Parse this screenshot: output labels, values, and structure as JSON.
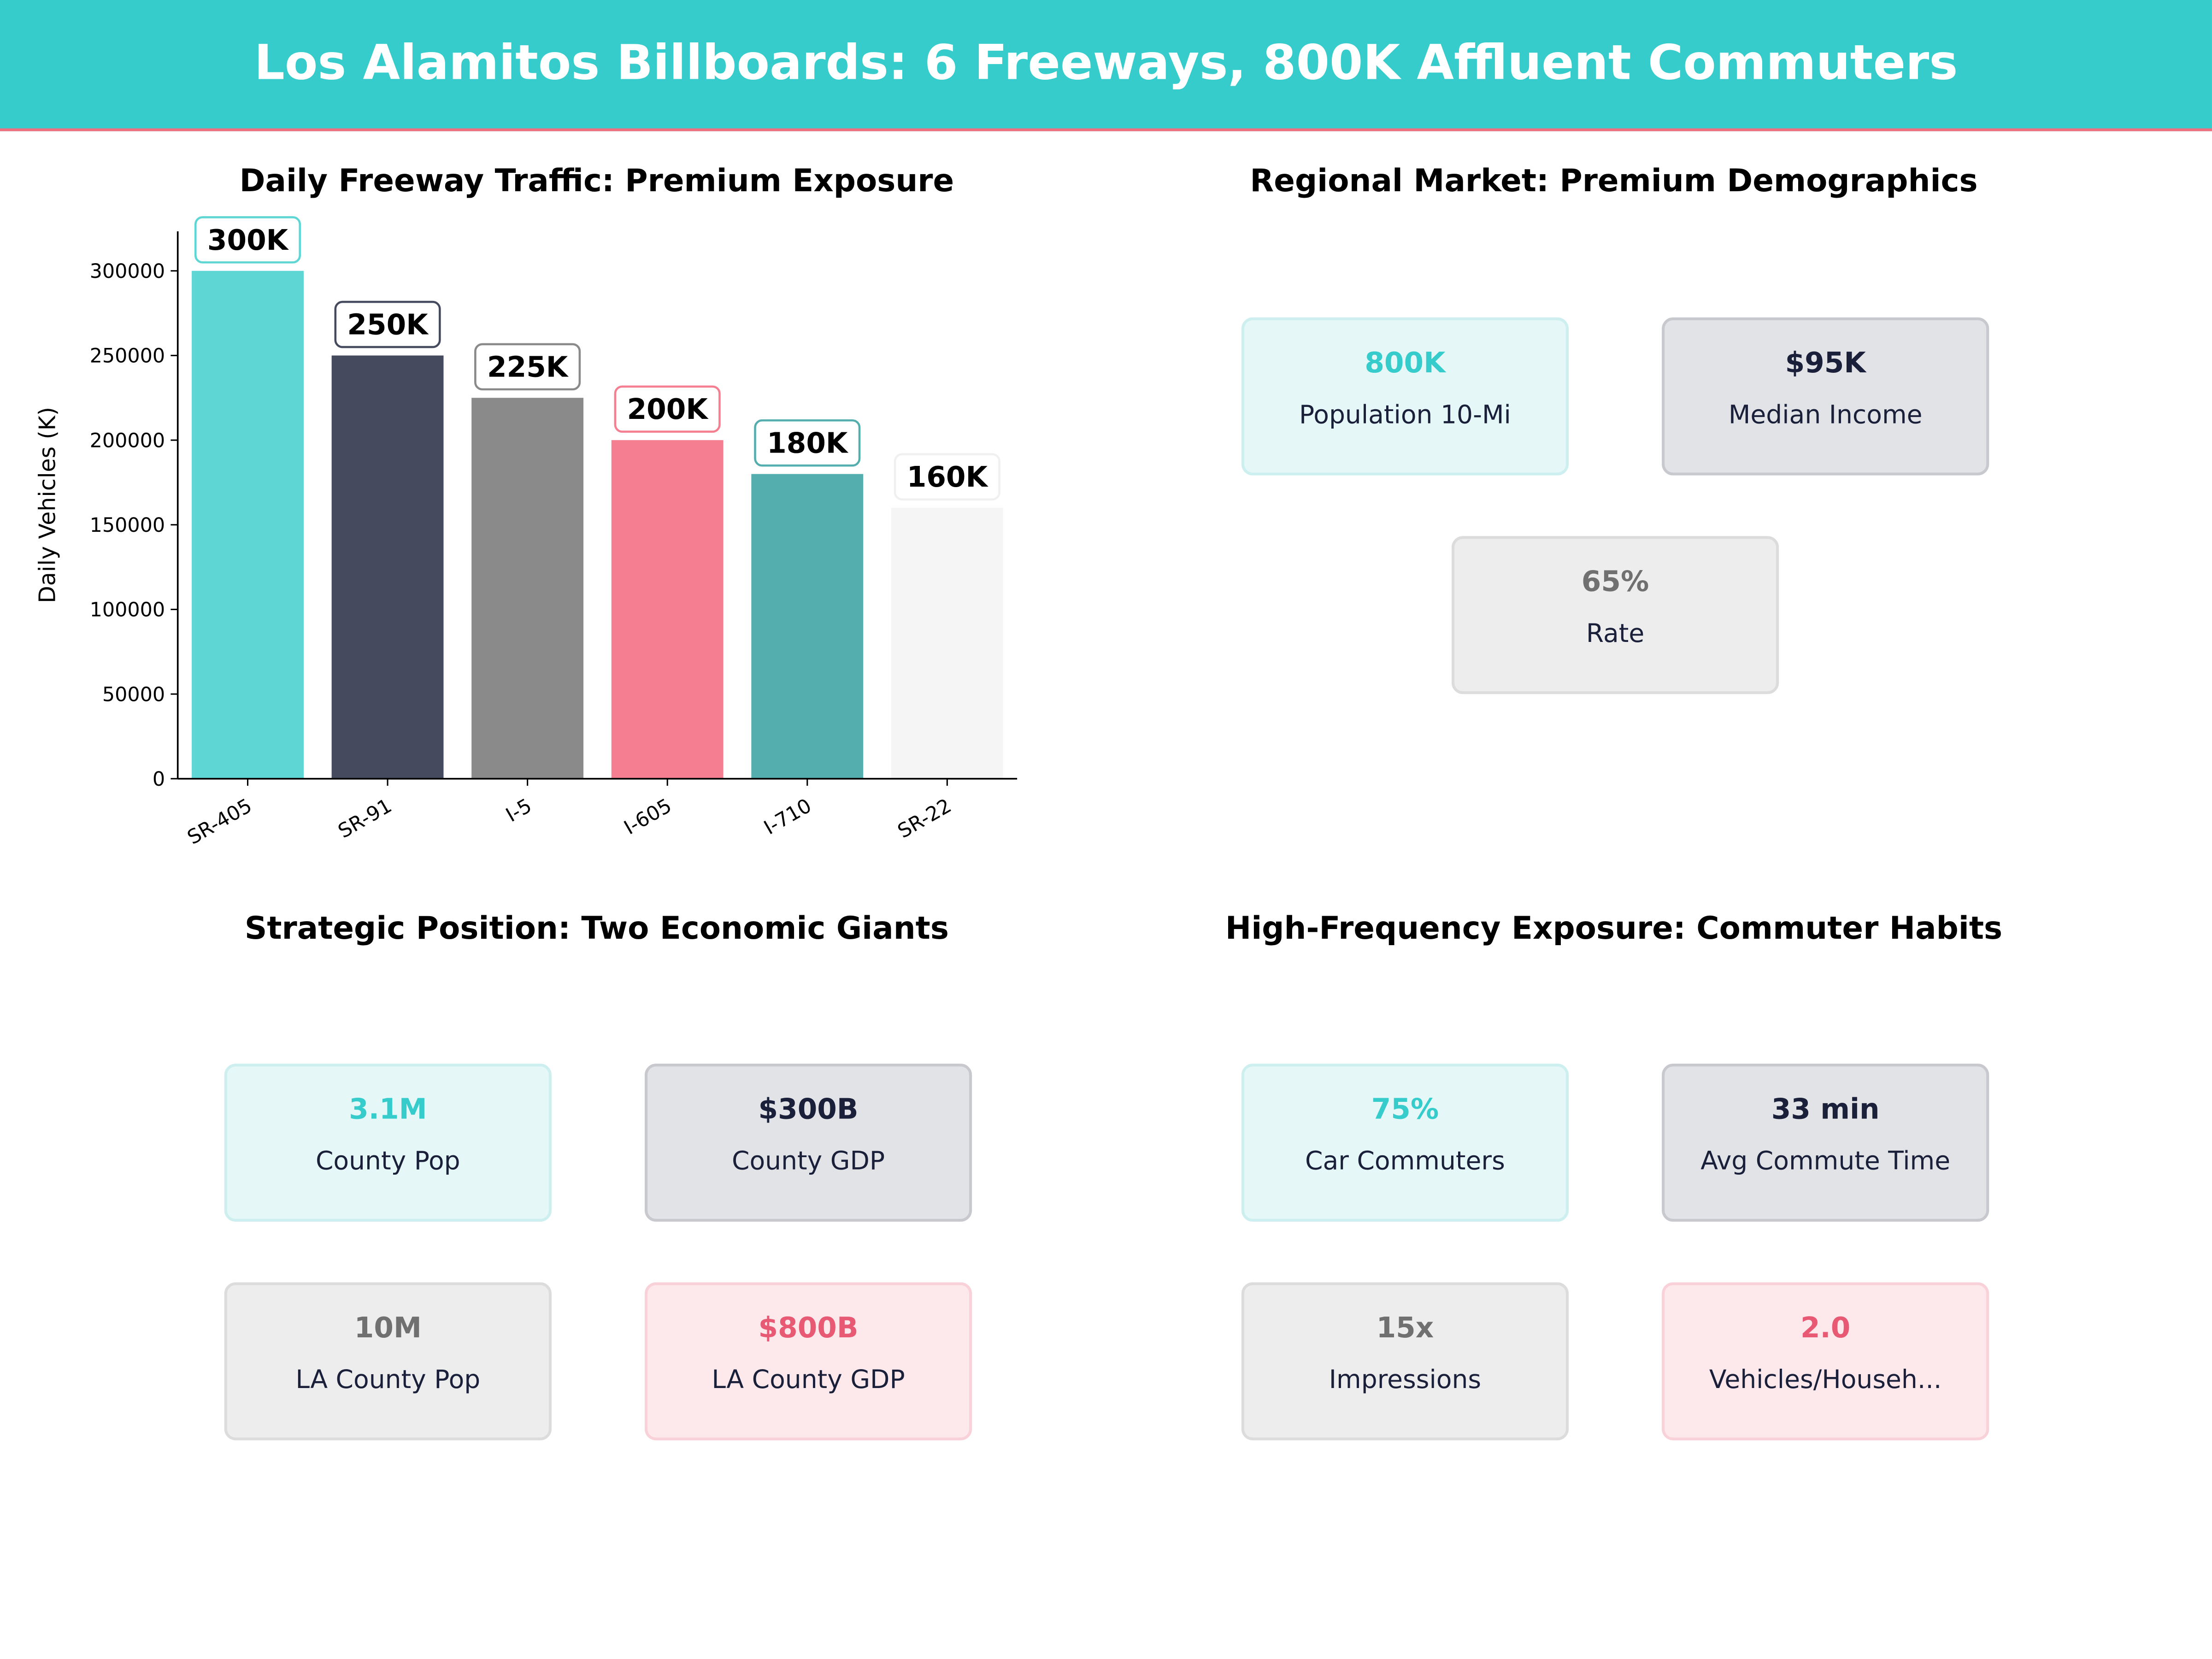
{
  "header": {
    "title": "Los Alamitos Billboards: 6 Freeways, 800K Affluent Commuters",
    "accent": "#36cccc",
    "underline": "#f07080"
  },
  "chart_data": {
    "type": "bar",
    "title": "Daily Freeway Traffic: Premium Exposure",
    "xlabel": "",
    "ylabel": "Daily Vehicles (K)",
    "categories": [
      "SR-405",
      "SR-91",
      "I-5",
      "I-605",
      "I-710",
      "SR-22"
    ],
    "values": [
      300000,
      250000,
      225000,
      200000,
      180000,
      160000
    ],
    "data_labels": [
      "300K",
      "250K",
      "225K",
      "200K",
      "180K",
      "160K"
    ],
    "colors": [
      "#5dd6d4",
      "#454a5e",
      "#8a8a8a",
      "#f57e91",
      "#55aeae",
      "#f5f5f5"
    ],
    "yticks": [
      "0",
      "50000",
      "100000",
      "150000",
      "200000",
      "250000",
      "300000"
    ],
    "ylim": [
      0,
      322000
    ],
    "grid": false
  },
  "panels": {
    "regional": {
      "title": "Regional Market: Premium Demographics",
      "cards": [
        {
          "value": "800K",
          "label": "Population 10-Mi",
          "style": "teal"
        },
        {
          "value": "$95K",
          "label": "Median Income",
          "style": "dark"
        },
        {
          "value": "65%",
          "label": "Rate",
          "style": "gray"
        }
      ]
    },
    "strategic": {
      "title": "Strategic Position: Two Economic Giants",
      "cards": [
        {
          "value": "3.1M",
          "label": "County Pop",
          "style": "teal"
        },
        {
          "value": "$300B",
          "label": "County GDP",
          "style": "dark"
        },
        {
          "value": "10M",
          "label": "LA County Pop",
          "style": "gray"
        },
        {
          "value": "$800B",
          "label": "LA County GDP",
          "style": "pink"
        }
      ]
    },
    "habits": {
      "title": "High-Frequency Exposure: Commuter Habits",
      "cards": [
        {
          "value": "75%",
          "label": "Car Commuters",
          "style": "teal"
        },
        {
          "value": "33 min",
          "label": "Avg Commute Time",
          "style": "dark"
        },
        {
          "value": "15x",
          "label": "Impressions",
          "style": "gray"
        },
        {
          "value": "2.0",
          "label": "Vehicles/Househ...",
          "style": "pink"
        }
      ]
    }
  }
}
